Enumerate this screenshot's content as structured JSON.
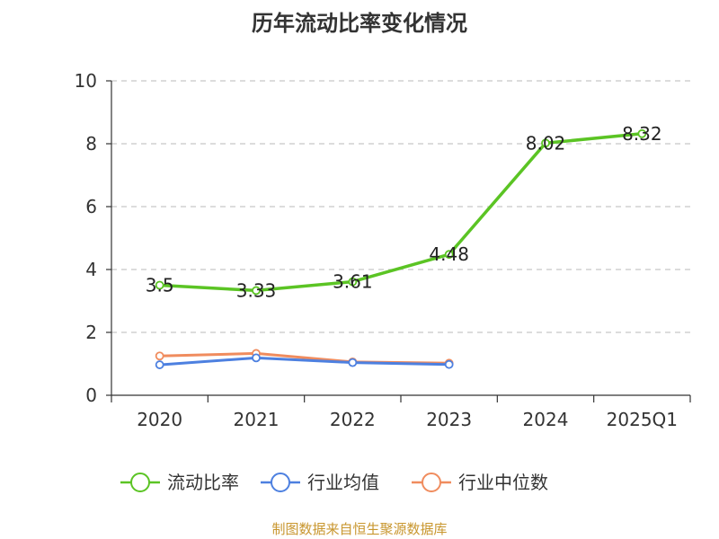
{
  "chart_data": {
    "type": "line",
    "title": "历年流动比率变化情况",
    "categories": [
      "2020",
      "2021",
      "2022",
      "2023",
      "2024",
      "2025Q1"
    ],
    "ylim": [
      0,
      10
    ],
    "yticks": [
      0,
      2,
      4,
      6,
      8,
      10
    ],
    "grid": true,
    "legend_position": "bottom",
    "series": [
      {
        "name": "流动比率",
        "color": "#5bc424",
        "values": [
          3.5,
          3.33,
          3.61,
          4.48,
          8.02,
          8.32
        ],
        "labels": [
          "3.5",
          "3.33",
          "3.61",
          "4.48",
          "8.02",
          "8.32"
        ],
        "show_labels": true
      },
      {
        "name": "行业均值",
        "color": "#4d80e0",
        "values": [
          0.97,
          1.19,
          1.04,
          0.98,
          null,
          null
        ],
        "show_labels": false
      },
      {
        "name": "行业中位数",
        "color": "#f08c5e",
        "values": [
          1.25,
          1.33,
          1.06,
          1.02,
          null,
          null
        ],
        "show_labels": false
      }
    ]
  },
  "footer": {
    "source": "制图数据来自恒生聚源数据库"
  }
}
